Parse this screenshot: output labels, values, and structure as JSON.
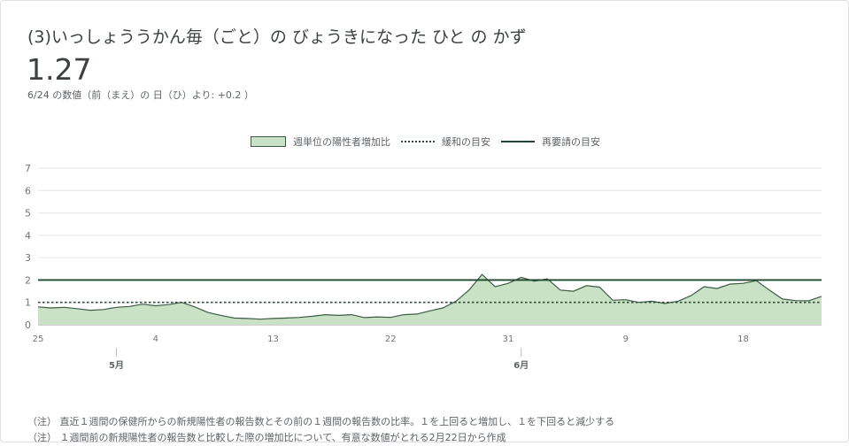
{
  "header": {
    "title": "(3)いっしょううかん毎（ごと）の びょうきになった ひと の かず",
    "value": "1.27",
    "subtitle": "6/24 の数値（前（まえ）の 日（ひ）より: +0.2 ）"
  },
  "legend": {
    "area_label": "週単位の陽性者増加比",
    "dotted_label": "緩和の目安",
    "solid_label": "再要請の目安"
  },
  "notes": [
    "（注） 直近１週間の保健所からの新規陽性者の報告数とその前の１週間の報告数の比率。１を上回ると増加し、１を下回ると減少する",
    "（注） １週間前の新規陽性者の報告数と比較した際の増加比について、有意な数値がとれる2月22日から作成"
  ],
  "colors": {
    "area_fill": "#c9e2c5",
    "area_stroke": "#3d5c45",
    "dotted_line": "#2d4a3a",
    "solid_line": "#1e4630",
    "grid": "#e6e6e6"
  },
  "chart_data": {
    "type": "area",
    "title": "",
    "xlabel": "",
    "ylabel": "",
    "ylim": [
      0,
      7
    ],
    "yticks": [
      "0",
      "1",
      "2",
      "3",
      "4",
      "5",
      "6",
      "7"
    ],
    "x_tick_labels": [
      "25",
      "4",
      "13",
      "22",
      "31",
      "9",
      "18"
    ],
    "month_labels": [
      "5月",
      "6月"
    ],
    "dates": [
      "4/25",
      "4/26",
      "4/27",
      "4/28",
      "4/29",
      "4/30",
      "5/1",
      "5/2",
      "5/3",
      "5/4",
      "5/5",
      "5/6",
      "5/7",
      "5/8",
      "5/9",
      "5/10",
      "5/11",
      "5/12",
      "5/13",
      "5/14",
      "5/15",
      "5/16",
      "5/17",
      "5/18",
      "5/19",
      "5/20",
      "5/21",
      "5/22",
      "5/23",
      "5/24",
      "5/25",
      "5/26",
      "5/27",
      "5/28",
      "5/29",
      "5/30",
      "5/31",
      "6/1",
      "6/2",
      "6/3",
      "6/4",
      "6/5",
      "6/6",
      "6/7",
      "6/8",
      "6/9",
      "6/10",
      "6/11",
      "6/12",
      "6/13",
      "6/14",
      "6/15",
      "6/16",
      "6/17",
      "6/18",
      "6/19",
      "6/20",
      "6/21",
      "6/22",
      "6/23",
      "6/24"
    ],
    "series": [
      {
        "name": "週単位の陽性者増加比",
        "values": [
          0.8,
          0.75,
          0.78,
          0.72,
          0.65,
          0.68,
          0.78,
          0.82,
          0.92,
          0.85,
          0.9,
          1.0,
          0.8,
          0.55,
          0.42,
          0.3,
          0.28,
          0.25,
          0.28,
          0.3,
          0.33,
          0.38,
          0.45,
          0.42,
          0.45,
          0.32,
          0.35,
          0.33,
          0.45,
          0.48,
          0.62,
          0.75,
          1.05,
          1.55,
          2.25,
          1.7,
          1.85,
          2.12,
          1.95,
          2.05,
          1.55,
          1.5,
          1.75,
          1.68,
          1.1,
          1.12,
          1.0,
          1.05,
          0.95,
          1.05,
          1.3,
          1.7,
          1.62,
          1.82,
          1.85,
          1.97,
          1.55,
          1.15,
          1.08,
          1.07,
          1.27
        ]
      },
      {
        "name": "緩和の目安",
        "constant": 1
      },
      {
        "name": "再要請の目安",
        "constant": 2
      }
    ]
  }
}
